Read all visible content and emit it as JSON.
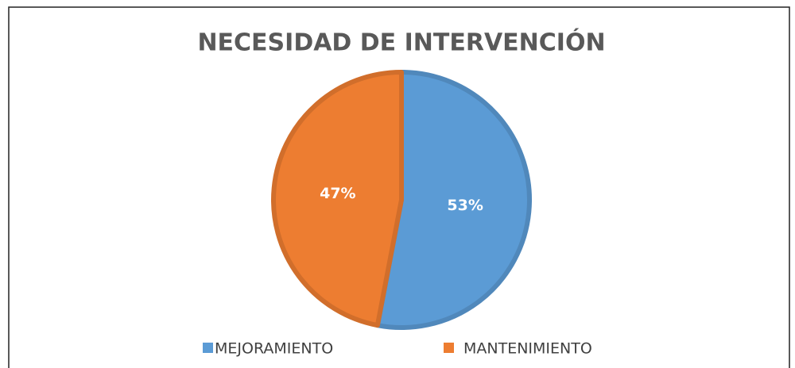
{
  "chart_data": {
    "type": "pie",
    "title": "NECESIDAD DE INTERVENCIÓN",
    "categories": [
      "MEJORAMIENTO",
      "MANTENIMIENTO"
    ],
    "values": [
      53,
      47
    ],
    "value_labels": [
      "53%",
      "47%"
    ],
    "colors": [
      "#5b9bd5",
      "#ed7d31"
    ],
    "legend": "bottom"
  }
}
